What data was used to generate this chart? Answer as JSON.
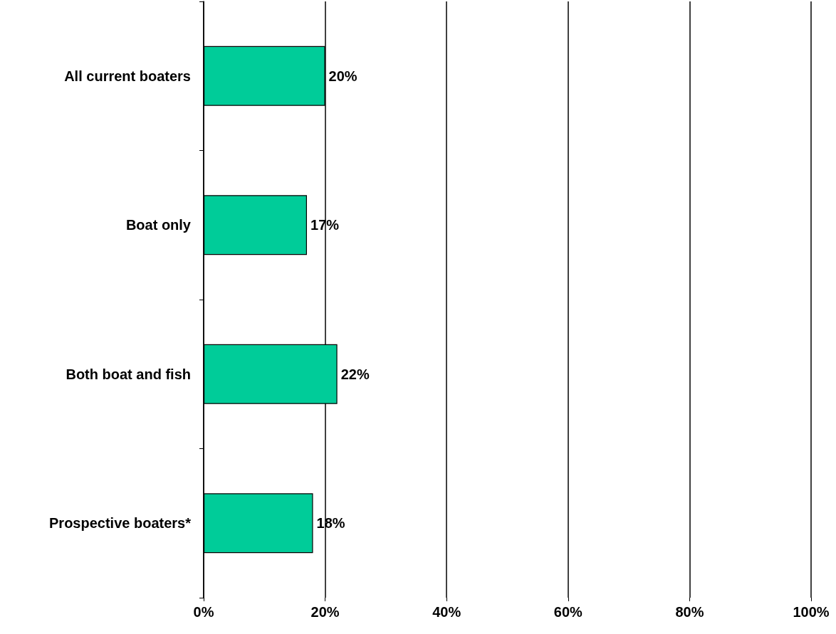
{
  "chart_data": {
    "type": "bar",
    "orientation": "horizontal",
    "categories": [
      "All current boaters",
      "Boat only",
      "Both boat and fish",
      "Prospective boaters*"
    ],
    "values": [
      20,
      17,
      22,
      18
    ],
    "value_labels": [
      "20%",
      "17%",
      "22%",
      "18%"
    ],
    "color": "#00cc99",
    "xlim": [
      0,
      100
    ],
    "xticks": [
      {
        "value": 0,
        "label": "0%"
      },
      {
        "value": 20,
        "label": "20%"
      },
      {
        "value": 40,
        "label": "40%"
      },
      {
        "value": 60,
        "label": "60%"
      },
      {
        "value": 80,
        "label": "80%"
      },
      {
        "value": 100,
        "label": "100%"
      }
    ],
    "grid": "x"
  }
}
